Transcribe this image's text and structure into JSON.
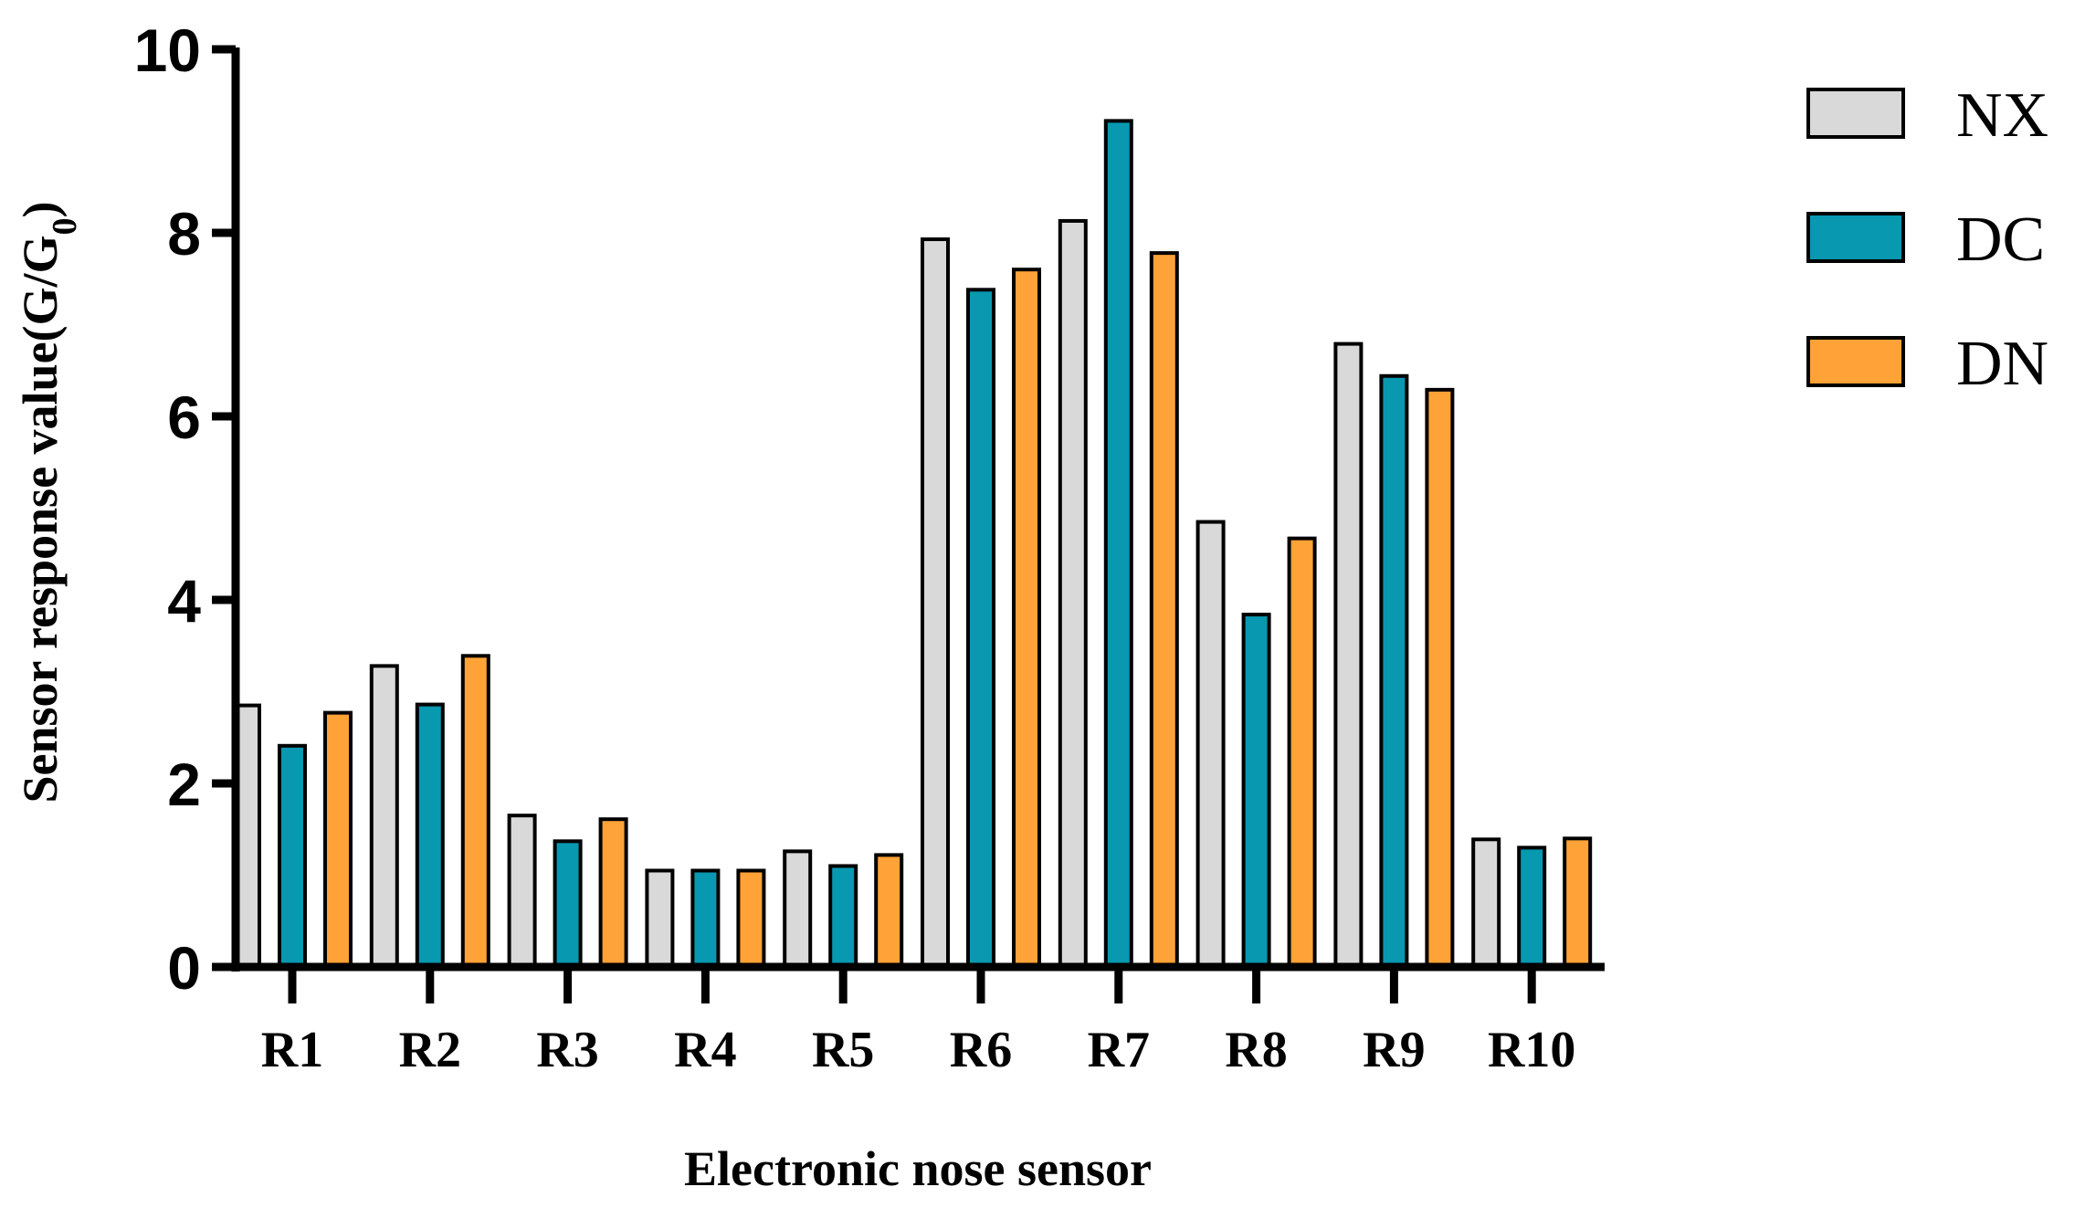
{
  "chart_data": {
    "type": "bar",
    "title": "",
    "xlabel": "Electronic nose sensor",
    "ylabel": "Sensor response value(G/G",
    "ylabel_subscript": "0",
    "ylabel_suffix": ")",
    "ylim": [
      0,
      10
    ],
    "yticks": [
      0,
      2,
      4,
      6,
      8,
      10
    ],
    "ytick_labels": [
      "0",
      "2",
      "4",
      "6",
      "8",
      "10"
    ],
    "grid": false,
    "legend_position": "top-right",
    "categories": [
      "R1",
      "R2",
      "R3",
      "R4",
      "R5",
      "R6",
      "R7",
      "R8",
      "R9",
      "R10"
    ],
    "series": [
      {
        "name": "NX",
        "color": "#d9d9d9",
        "values": [
          2.85,
          3.28,
          1.65,
          1.05,
          1.26,
          7.93,
          8.13,
          4.85,
          6.79,
          1.39
        ]
      },
      {
        "name": "DC",
        "color": "#0898b0",
        "values": [
          2.41,
          2.86,
          1.37,
          1.05,
          1.1,
          7.38,
          9.22,
          3.84,
          6.44,
          1.3
        ]
      },
      {
        "name": "DN",
        "color": "#ffa237",
        "values": [
          2.77,
          3.39,
          1.61,
          1.05,
          1.22,
          7.6,
          7.78,
          4.67,
          6.29,
          1.4
        ]
      }
    ]
  }
}
